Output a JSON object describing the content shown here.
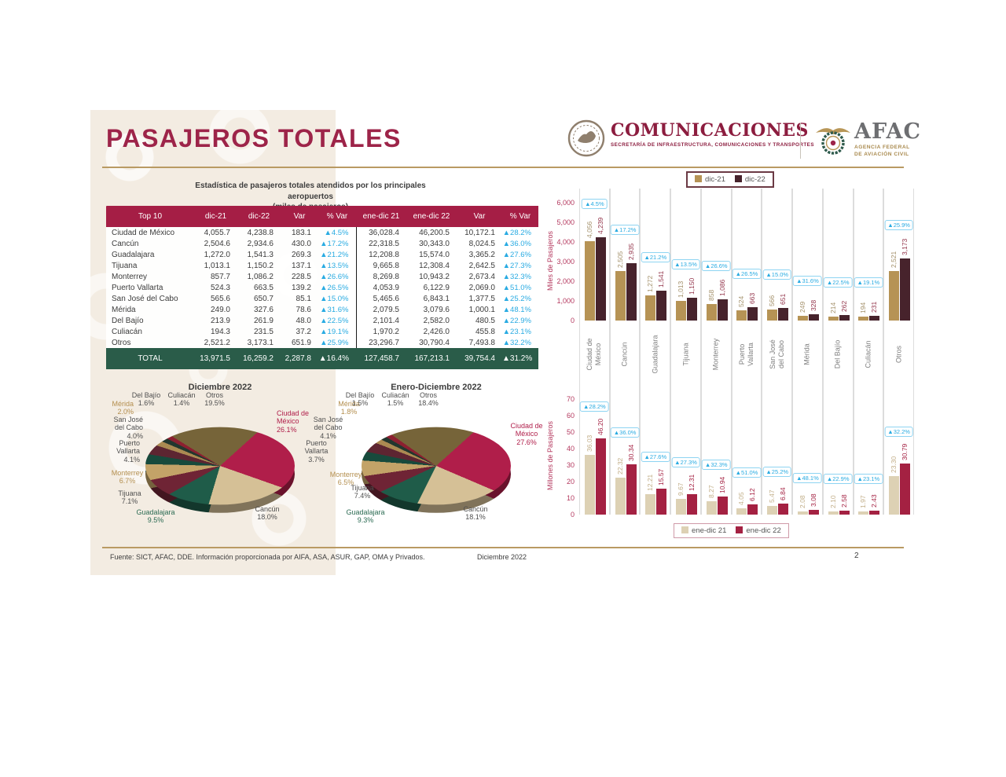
{
  "page": {
    "title": "PASAJEROS TOTALES"
  },
  "header": {
    "comunicaciones": {
      "title": "COMUNICACIONES",
      "subtitle": "SECRETARÍA DE INFRAESTRUCTURA, COMUNICACIONES Y TRANSPORTES"
    },
    "afac": {
      "title": "AFAC",
      "subtitle_line1": "AGENCIA FEDERAL",
      "subtitle_line2": "DE AVIACIÓN CIVIL"
    }
  },
  "table": {
    "title_line1": "Estadística de pasajeros totales atendidos por los principales aeropuertos",
    "title_line2": "(miles de pasajeros)",
    "headers": [
      "Top 10",
      "dic-21",
      "dic-22",
      "Var",
      "% Var",
      "ene-dic 21",
      "ene-dic 22",
      "Var",
      "% Var"
    ],
    "rows": [
      {
        "name": "Ciudad de México",
        "values": [
          "4,055.7",
          "4,238.8",
          "183.1",
          "▲4.5%",
          "36,028.4",
          "46,200.5",
          "10,172.1",
          "▲28.2%"
        ]
      },
      {
        "name": "Cancún",
        "values": [
          "2,504.6",
          "2,934.6",
          "430.0",
          "▲17.2%",
          "22,318.5",
          "30,343.0",
          "8,024.5",
          "▲36.0%"
        ]
      },
      {
        "name": "Guadalajara",
        "values": [
          "1,272.0",
          "1,541.3",
          "269.3",
          "▲21.2%",
          "12,208.8",
          "15,574.0",
          "3,365.2",
          "▲27.6%"
        ]
      },
      {
        "name": "Tijuana",
        "values": [
          "1,013.1",
          "1,150.2",
          "137.1",
          "▲13.5%",
          "9,665.8",
          "12,308.4",
          "2,642.5",
          "▲27.3%"
        ]
      },
      {
        "name": "Monterrey",
        "values": [
          "857.7",
          "1,086.2",
          "228.5",
          "▲26.6%",
          "8,269.8",
          "10,943.2",
          "2,673.4",
          "▲32.3%"
        ]
      },
      {
        "name": "Puerto Vallarta",
        "values": [
          "524.3",
          "663.5",
          "139.2",
          "▲26.5%",
          "4,053.9",
          "6,122.9",
          "2,069.0",
          "▲51.0%"
        ]
      },
      {
        "name": "San José del Cabo",
        "values": [
          "565.6",
          "650.7",
          "85.1",
          "▲15.0%",
          "5,465.6",
          "6,843.1",
          "1,377.5",
          "▲25.2%"
        ]
      },
      {
        "name": "Mérida",
        "values": [
          "249.0",
          "327.6",
          "78.6",
          "▲31.6%",
          "2,079.5",
          "3,079.6",
          "1,000.1",
          "▲48.1%"
        ]
      },
      {
        "name": "Del Bajío",
        "values": [
          "213.9",
          "261.9",
          "48.0",
          "▲22.5%",
          "2,101.4",
          "2,582.0",
          "480.5",
          "▲22.9%"
        ]
      },
      {
        "name": "Culiacán",
        "values": [
          "194.3",
          "231.5",
          "37.2",
          "▲19.1%",
          "1,970.2",
          "2,426.0",
          "455.8",
          "▲23.1%"
        ]
      },
      {
        "name": "Otros",
        "values": [
          "2,521.2",
          "3,173.1",
          "651.9",
          "▲25.9%",
          "23,296.7",
          "30,790.4",
          "7,493.8",
          "▲32.2%"
        ]
      }
    ],
    "total": {
      "name": "TOTAL",
      "values": [
        "13,971.5",
        "16,259.2",
        "2,287.8",
        "▲16.4%",
        "127,458.7",
        "167,213.1",
        "39,754.4",
        "▲31.2%"
      ]
    }
  },
  "footer": {
    "source": "Fuente: SICT, AFAC, DDE. Información proporcionada por AIFA, ASA, ASUR, GAP, OMA y Privados.",
    "date": "Diciembre 2022",
    "page_number": "2"
  },
  "colors": {
    "title_maroon": "#9d2449",
    "table_header": "#a51e45",
    "table_total_green": "#2a5c49",
    "var_blue": "#29abe2",
    "gold_rule": "#b99a63"
  },
  "chart_data": [
    {
      "id": "bar-dic",
      "type": "bar",
      "ylabel": "Miles de Pasajeros",
      "ylim": [
        0,
        6000
      ],
      "yticks": [
        "0",
        "1,000",
        "2,000",
        "3,000",
        "4,000",
        "5,000",
        "6,000"
      ],
      "legend": [
        "dic-21",
        "dic-22"
      ],
      "legend_position": "top",
      "grid": false,
      "categories": [
        "Ciudad de\nMéxico",
        "Cancún",
        "Guadalajara",
        "Tijuana",
        "Monterrey",
        "Puerto\nVallarta",
        "San José\ndel Cabo",
        "Mérida",
        "Del Bajío",
        "Culiacán",
        "Otros"
      ],
      "series": [
        {
          "name": "dic-21",
          "color": "#b69355",
          "label_color": "#a4916b",
          "values": [
            4056,
            2505,
            1272,
            1013,
            858,
            524,
            566,
            249,
            214,
            194,
            2521
          ],
          "labels": [
            "4,056",
            "2,505",
            "1,272",
            "1,013",
            "858",
            "524",
            "566",
            "249",
            "214",
            "194",
            "2,521"
          ]
        },
        {
          "name": "dic-22",
          "color": "#47232c",
          "label_color": "#93344a",
          "values": [
            4239,
            2935,
            1541,
            1150,
            1086,
            663,
            651,
            328,
            262,
            231,
            3173
          ],
          "labels": [
            "4,239",
            "2,935",
            "1,541",
            "1,150",
            "1,086",
            "663",
            "651",
            "328",
            "262",
            "231",
            "3,173"
          ]
        }
      ],
      "var_badges": [
        "▲4.5%",
        "▲17.2%",
        "▲21.2%",
        "▲13.5%",
        "▲26.6%",
        "▲26.5%",
        "▲15.0%",
        "▲31.6%",
        "▲22.5%",
        "▲19.1%",
        "▲25.9%"
      ]
    },
    {
      "id": "bar-enedic",
      "type": "bar",
      "ylabel": "Millones de Pasajeros",
      "ylim": [
        0,
        70
      ],
      "yticks": [
        "0",
        "10",
        "20",
        "30",
        "40",
        "50",
        "60",
        "70"
      ],
      "legend": [
        "ene-dic 21",
        "ene-dic 22"
      ],
      "legend_position": "bottom",
      "grid": false,
      "categories": [
        "Ciudad de\nMéxico",
        "Cancún",
        "Guadalajara",
        "Tijuana",
        "Monterrey",
        "Puerto\nVallarta",
        "San José\ndel Cabo",
        "Mérida",
        "Del Bajío",
        "Culiacán",
        "Otros"
      ],
      "series": [
        {
          "name": "ene-dic 21",
          "color": "#ddd1b4",
          "label_color": "#c2ae88",
          "values": [
            36.03,
            22.32,
            12.21,
            9.67,
            8.27,
            4.05,
            5.47,
            2.08,
            2.1,
            1.97,
            23.3
          ],
          "labels": [
            "36.03",
            "22.32",
            "12.21",
            "9.67",
            "8.27",
            "4.05",
            "5.47",
            "2.08",
            "2.10",
            "1.97",
            "23.30"
          ]
        },
        {
          "name": "ene-dic 22",
          "color": "#a42142",
          "label_color": "#a42142",
          "values": [
            46.2,
            30.34,
            15.57,
            12.31,
            10.94,
            6.12,
            6.84,
            3.08,
            2.58,
            2.43,
            30.79
          ],
          "labels": [
            "46.20",
            "30.34",
            "15.57",
            "12.31",
            "10.94",
            "6.12",
            "6.84",
            "3.08",
            "2.58",
            "2.43",
            "30.79"
          ]
        }
      ],
      "var_badges": [
        "▲28.2%",
        "▲36.0%",
        "▲27.6%",
        "▲27.3%",
        "▲32.3%",
        "▲51.0%",
        "▲25.2%",
        "▲48.1%",
        "▲22.9%",
        "▲23.1%",
        "▲32.2%"
      ]
    },
    {
      "id": "pie-dic",
      "type": "pie",
      "title": "Diciembre 2022",
      "start_angle_deg": 30,
      "slices": [
        {
          "name": "Ciudad de\nMéxico",
          "pct": "26.1%",
          "value": 26.1,
          "color": "#b01e4a",
          "label_color": "#b01e4a"
        },
        {
          "name": "Cancún",
          "pct": "18.0%",
          "value": 18.0,
          "color": "#d5c096",
          "label_color": "#4f4f4f"
        },
        {
          "name": "Guadalajara",
          "pct": "9.5%",
          "value": 9.5,
          "color": "#1f5c49",
          "label_color": "#2a6a52"
        },
        {
          "name": "Tijuana",
          "pct": "7.1%",
          "value": 7.1,
          "color": "#6f2435",
          "label_color": "#4f4f4f"
        },
        {
          "name": "Monterrey",
          "pct": "6.7%",
          "value": 6.7,
          "color": "#c3a368",
          "label_color": "#b48f4f"
        },
        {
          "name": "Puerto\nVallarta",
          "pct": "4.1%",
          "value": 4.1,
          "color": "#174a3c",
          "label_color": "#4f4f4f"
        },
        {
          "name": "San José\ndel Cabo",
          "pct": "4.0%",
          "value": 4.0,
          "color": "#5d2531",
          "label_color": "#4f4f4f"
        },
        {
          "name": "Mérida",
          "pct": "2.0%",
          "value": 2.0,
          "color": "#ab8a52",
          "label_color": "#b48f4f"
        },
        {
          "name": "Del Bajío",
          "pct": "1.6%",
          "value": 1.6,
          "color": "#23372e",
          "label_color": "#4f4f4f"
        },
        {
          "name": "Culiacán",
          "pct": "1.4%",
          "value": 1.4,
          "color": "#8c2030",
          "label_color": "#4f4f4f"
        },
        {
          "name": "Otros",
          "pct": "19.5%",
          "value": 19.5,
          "color": "#766439",
          "label_color": "#4f4f4f"
        }
      ]
    },
    {
      "id": "pie-enedic",
      "type": "pie",
      "title": "Enero-Diciembre 2022",
      "start_angle_deg": 30,
      "slices": [
        {
          "name": "Ciudad de\nMéxico",
          "pct": "27.6%",
          "value": 27.6,
          "color": "#b01e4a",
          "label_color": "#b01e4a"
        },
        {
          "name": "Cancún",
          "pct": "18.1%",
          "value": 18.1,
          "color": "#d5c096",
          "label_color": "#4f4f4f"
        },
        {
          "name": "Guadalajara",
          "pct": "9.3%",
          "value": 9.3,
          "color": "#1f5c49",
          "label_color": "#2a6a52"
        },
        {
          "name": "Tijuana",
          "pct": "7.4%",
          "value": 7.4,
          "color": "#6f2435",
          "label_color": "#4f4f4f"
        },
        {
          "name": "Monterrey",
          "pct": "6.5%",
          "value": 6.5,
          "color": "#c3a368",
          "label_color": "#b48f4f"
        },
        {
          "name": "Puerto\nVallarta",
          "pct": "3.7%",
          "value": 3.7,
          "color": "#174a3c",
          "label_color": "#4f4f4f"
        },
        {
          "name": "San José\ndel Cabo",
          "pct": "4.1%",
          "value": 4.1,
          "color": "#5d2531",
          "label_color": "#4f4f4f"
        },
        {
          "name": "Mérida",
          "pct": "1.8%",
          "value": 1.8,
          "color": "#ab8a52",
          "label_color": "#b48f4f"
        },
        {
          "name": "Del Bajío",
          "pct": "1.5%",
          "value": 1.5,
          "color": "#23372e",
          "label_color": "#4f4f4f"
        },
        {
          "name": "Culiacán",
          "pct": "1.5%",
          "value": 1.5,
          "color": "#8c2030",
          "label_color": "#4f4f4f"
        },
        {
          "name": "Otros",
          "pct": "18.4%",
          "value": 18.4,
          "color": "#766439",
          "label_color": "#4f4f4f"
        }
      ]
    }
  ]
}
